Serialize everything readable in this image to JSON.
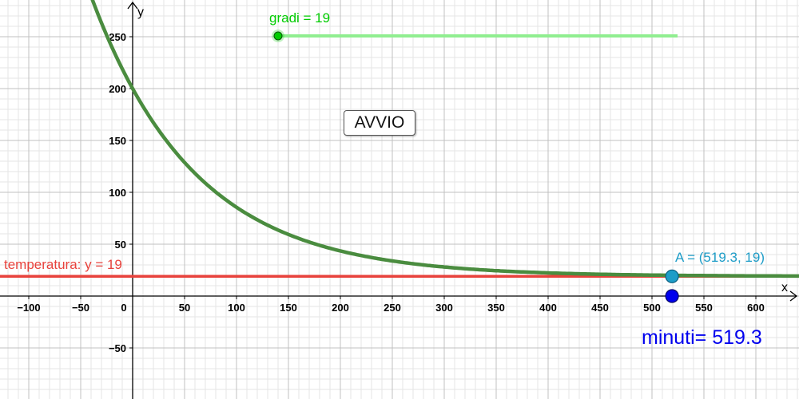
{
  "axes": {
    "x_label": "x",
    "y_label": "y",
    "x_range": [
      -125,
      640
    ],
    "y_range": [
      -100,
      283
    ],
    "x_ticks": [
      -100,
      -50,
      0,
      50,
      100,
      150,
      200,
      250,
      300,
      350,
      400,
      450,
      500,
      550,
      600
    ],
    "y_ticks": [
      -50,
      50,
      100,
      150,
      200,
      250
    ],
    "grid": true
  },
  "slider": {
    "label": "gradi = 19",
    "value": 19,
    "color": "#00cc00"
  },
  "button": {
    "label": "AVVIO"
  },
  "temperature_line": {
    "label": "temperatura: y = 19",
    "y": 19,
    "color": "#e8423c"
  },
  "point_A": {
    "label": "A = (519.3, 19)",
    "x": 519.3,
    "y": 19,
    "color": "#1e9dc8"
  },
  "minuti_point": {
    "x": 519.3,
    "y": 0,
    "color": "#0000ee"
  },
  "minuti_text": {
    "label": "minuti= 519.3",
    "color": "#0000ee"
  },
  "curve": {
    "equation": "y = 19 + 181 e^(-x/100)",
    "color": "#4a8c3f"
  }
}
